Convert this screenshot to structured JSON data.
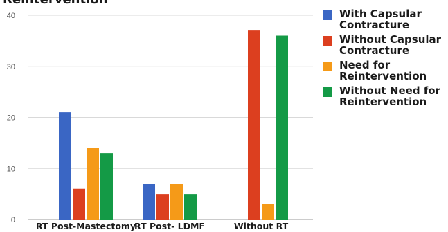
{
  "chart_data": {
    "type": "bar",
    "title": "Reintervention",
    "categories": [
      "RT Post-Mastectomy",
      "RT Post- LDMF",
      "Without RT"
    ],
    "series": [
      {
        "name": "With Capsular\nContracture",
        "color": "#3a66c4",
        "values": [
          21,
          7,
          0
        ]
      },
      {
        "name": "Without Capsular\nContracture",
        "color": "#dc3f1f",
        "values": [
          6,
          5,
          37
        ]
      },
      {
        "name": "Need for\nReintervention",
        "color": "#f59a18",
        "values": [
          14,
          7,
          3
        ]
      },
      {
        "name": "Without Need for\nReintervention",
        "color": "#149a46",
        "values": [
          13,
          5,
          36
        ]
      }
    ],
    "yticks": [
      0,
      10,
      20,
      30,
      40
    ],
    "ylim": [
      0,
      40
    ],
    "xlabel": "",
    "ylabel": "",
    "grid": true,
    "legend_position": "right"
  }
}
